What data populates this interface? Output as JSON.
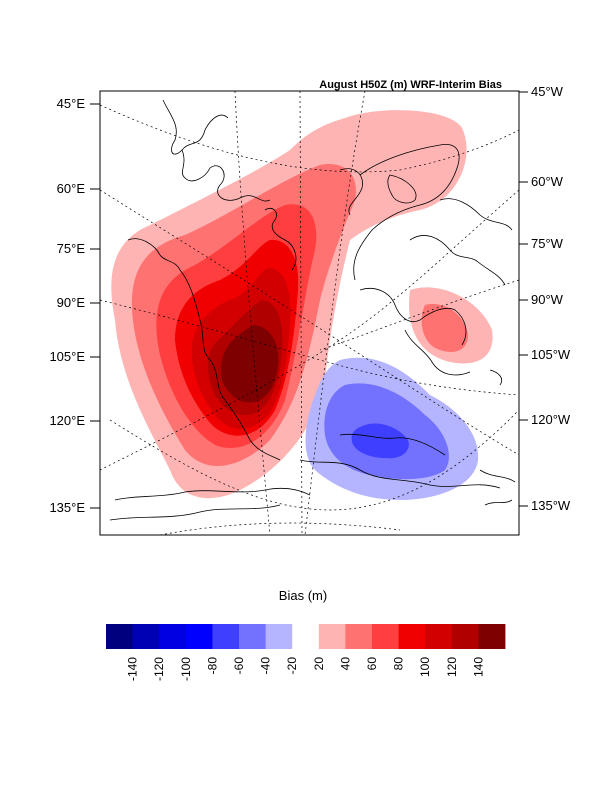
{
  "title": "August H50Z (m) WRF-Interim Bias",
  "left_labels": [
    "45°E",
    "60°E",
    "75°E",
    "90°E",
    "105°E",
    "120°E",
    "135°E"
  ],
  "right_labels": [
    "45°W",
    "60°W",
    "75°W",
    "90°W",
    "105°W",
    "120°W",
    "135°W"
  ],
  "colorbar": {
    "title": "Bias (m)",
    "levels": [
      -140,
      -120,
      -100,
      -80,
      -60,
      -40,
      -20,
      20,
      40,
      60,
      80,
      100,
      120,
      140
    ],
    "tick_labels": [
      "-140",
      "-120",
      "-100",
      "-80",
      "-60",
      "-40",
      "-20",
      "20",
      "40",
      "60",
      "80",
      "100",
      "120",
      "140"
    ],
    "colors": [
      "#00007f",
      "#0000b4",
      "#0000e0",
      "#0000ff",
      "#3f3fff",
      "#7272ff",
      "#b4b4ff",
      "#ffffff",
      "#ffb4b4",
      "#ff7272",
      "#ff3f3f",
      "#f00000",
      "#d20000",
      "#b00000",
      "#7f0000"
    ]
  }
}
